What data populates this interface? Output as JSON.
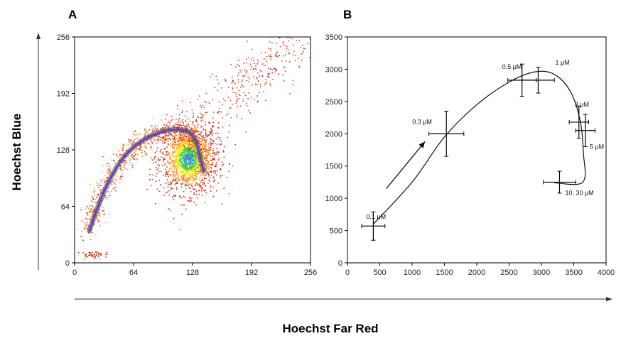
{
  "figure": {
    "shared_ylabel": "Hoechst Blue",
    "shared_xlabel": "Hoechst Far Red"
  },
  "chart_data": [
    {
      "panel_label": "A",
      "type": "scatter",
      "title": "",
      "xlabel": "",
      "ylabel": "",
      "xlim": [
        0,
        256
      ],
      "ylim": [
        0,
        256
      ],
      "xticks": [
        0,
        64,
        128,
        192,
        256
      ],
      "yticks": [
        0,
        64,
        128,
        192,
        256
      ],
      "grid": false,
      "colors": {
        "low": "#d62a12",
        "mid": "#ff8c1a",
        "high": "#ffe400",
        "peak": "#3fd03a",
        "core": "#2a9bd6",
        "curve": "#5a3fd6",
        "curve_shadow": "#4a4a4a"
      },
      "density_clusters": [
        {
          "name": "main population",
          "center": [
            124,
            118
          ],
          "spread": [
            16,
            20
          ],
          "count": 1500
        },
        {
          "name": "side population arc",
          "path": [
            [
              16,
              38
            ],
            [
              24,
              62
            ],
            [
              36,
              92
            ],
            [
              52,
              118
            ],
            [
              70,
              136
            ],
            [
              90,
              146
            ],
            [
              108,
              150
            ],
            [
              124,
              148
            ],
            [
              132,
              136
            ],
            [
              140,
              104
            ]
          ],
          "count": 900
        },
        {
          "name": "diagonal tail",
          "from": [
            120,
            150
          ],
          "to": [
            245,
            250
          ],
          "count": 320
        },
        {
          "name": "low cluster",
          "center": [
            22,
            9
          ],
          "spread": [
            8,
            2
          ],
          "count": 40
        }
      ],
      "gate_curve": [
        [
          16,
          36
        ],
        [
          24,
          60
        ],
        [
          36,
          90
        ],
        [
          52,
          118
        ],
        [
          70,
          136
        ],
        [
          90,
          147
        ],
        [
          108,
          151
        ],
        [
          124,
          148
        ],
        [
          132,
          136
        ],
        [
          140,
          104
        ]
      ]
    },
    {
      "panel_label": "B",
      "type": "line",
      "title": "",
      "xlabel": "",
      "ylabel": "",
      "xlim": [
        0,
        4000
      ],
      "ylim": [
        0,
        3500
      ],
      "xticks": [
        0,
        500,
        1000,
        1500,
        2000,
        2500,
        3000,
        3500,
        4000
      ],
      "yticks": [
        0,
        500,
        1000,
        1500,
        2000,
        2500,
        3000,
        3500
      ],
      "grid": false,
      "points": [
        {
          "label": "0.1 μM",
          "x": 400,
          "y": 570,
          "xerr": 180,
          "yerr": 220
        },
        {
          "label": "0.3 μM",
          "x": 1530,
          "y": 2000,
          "xerr": 270,
          "yerr": 350
        },
        {
          "label": "0.5 μM",
          "x": 2700,
          "y": 2830,
          "xerr": 220,
          "yerr": 250
        },
        {
          "label": "1 μM",
          "x": 2950,
          "y": 2830,
          "xerr": 250,
          "yerr": 200
        },
        {
          "label": "3 μM",
          "x": 3580,
          "y": 2180,
          "xerr": 150,
          "yerr": 250
        },
        {
          "label": "5 μM",
          "x": 3680,
          "y": 2050,
          "xerr": 150,
          "yerr": 250
        },
        {
          "label": "10, 30 μM",
          "x": 3280,
          "y": 1250,
          "xerr": 250,
          "yerr": 170
        }
      ],
      "curve": [
        [
          400,
          600
        ],
        [
          1000,
          1250
        ],
        [
          1500,
          1950
        ],
        [
          2000,
          2450
        ],
        [
          2500,
          2800
        ],
        [
          2900,
          2960
        ],
        [
          3200,
          2920
        ],
        [
          3450,
          2650
        ],
        [
          3600,
          2200
        ],
        [
          3650,
          1700
        ],
        [
          3640,
          1250
        ],
        [
          3200,
          1240
        ]
      ],
      "arrow": {
        "from": [
          600,
          1150
        ],
        "to": [
          1200,
          1880
        ]
      }
    }
  ]
}
